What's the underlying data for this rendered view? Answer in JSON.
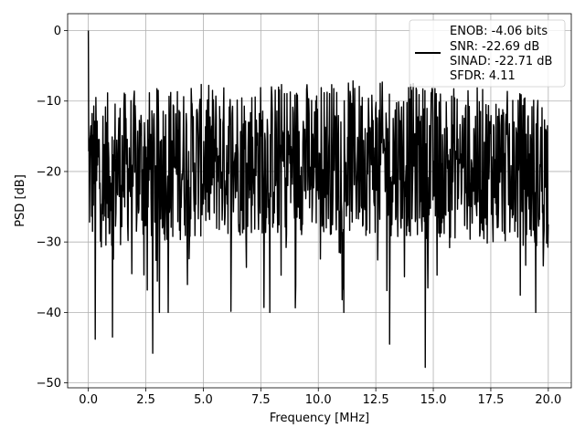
{
  "chart_data": {
    "type": "line",
    "title": "",
    "xlabel": "Frequency [MHz]",
    "ylabel": "PSD [dB]",
    "xlim": [
      -0.9,
      21.0
    ],
    "ylim": [
      -50.7,
      2.4
    ],
    "xticks": [
      0.0,
      2.5,
      5.0,
      7.5,
      10.0,
      12.5,
      15.0,
      17.5,
      20.0
    ],
    "xtick_labels": [
      "0.0",
      "2.5",
      "5.0",
      "7.5",
      "10.0",
      "12.5",
      "15.0",
      "17.5",
      "20.0"
    ],
    "yticks": [
      0,
      -10,
      -20,
      -30,
      -40,
      -50
    ],
    "ytick_labels": [
      "0",
      "−10",
      "−20",
      "−30",
      "−40",
      "−50"
    ],
    "grid": true,
    "legend_position": "top-right",
    "line_color": "#000000",
    "series": [
      {
        "name": "ENOB: -4.06 bits\nSNR: -22.69 dB\nSINAD: -22.71 dB\nSFDR: 4.11",
        "description_values": {
          "x_range": [
            0.0,
            20.0
          ],
          "peak": {
            "x": 0.0,
            "y": 0.0
          },
          "notable_minima": [
            {
              "x": 0.3,
              "y": -43.8
            },
            {
              "x": 1.05,
              "y": -43.5
            },
            {
              "x": 2.8,
              "y": -45.8
            },
            {
              "x": 13.1,
              "y": -44.5
            },
            {
              "x": 14.65,
              "y": -47.8
            }
          ],
          "typical_band": [
            -33,
            -8
          ]
        }
      }
    ],
    "legend_lines": [
      "ENOB: -4.06 bits",
      "SNR: -22.69 dB",
      "SINAD: -22.71 dB",
      "SFDR: 4.11"
    ]
  }
}
